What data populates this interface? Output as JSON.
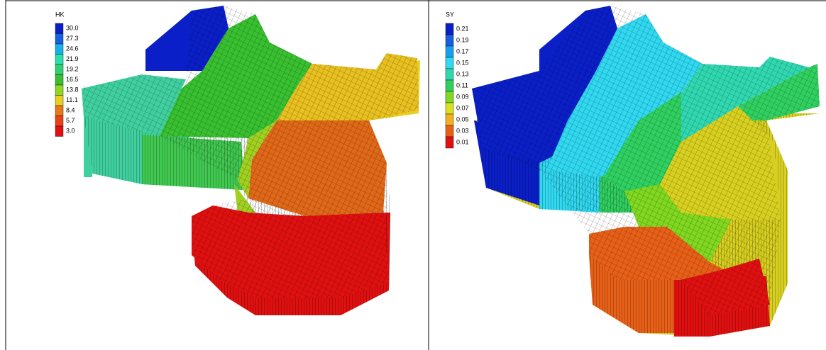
{
  "panels": [
    {
      "legend": {
        "title": "HK",
        "labels": [
          "30.0",
          "27.3",
          "24.6",
          "21.9",
          "19.2",
          "16.5",
          "13.8",
          "11.1",
          "8.4",
          "5.7",
          "3.0"
        ],
        "colors": [
          "#0a1fc8",
          "#1560e0",
          "#18b0e8",
          "#28e0b0",
          "#30d070",
          "#38c030",
          "#90d820",
          "#e8d020",
          "#e87818",
          "#e84018",
          "#e01010"
        ]
      }
    },
    {
      "legend": {
        "title": "SY",
        "labels": [
          "0.21",
          "0.19",
          "0.17",
          "0.15",
          "0.13",
          "0.11",
          "0.09",
          "0.07",
          "0.05",
          "0.03",
          "0.01"
        ],
        "colors": [
          "#0a1fc8",
          "#1560e0",
          "#18a0f0",
          "#30d8f0",
          "#30d8b0",
          "#30d060",
          "#80d820",
          "#d8e020",
          "#f0b020",
          "#e86018",
          "#e01010"
        ]
      }
    }
  ]
}
